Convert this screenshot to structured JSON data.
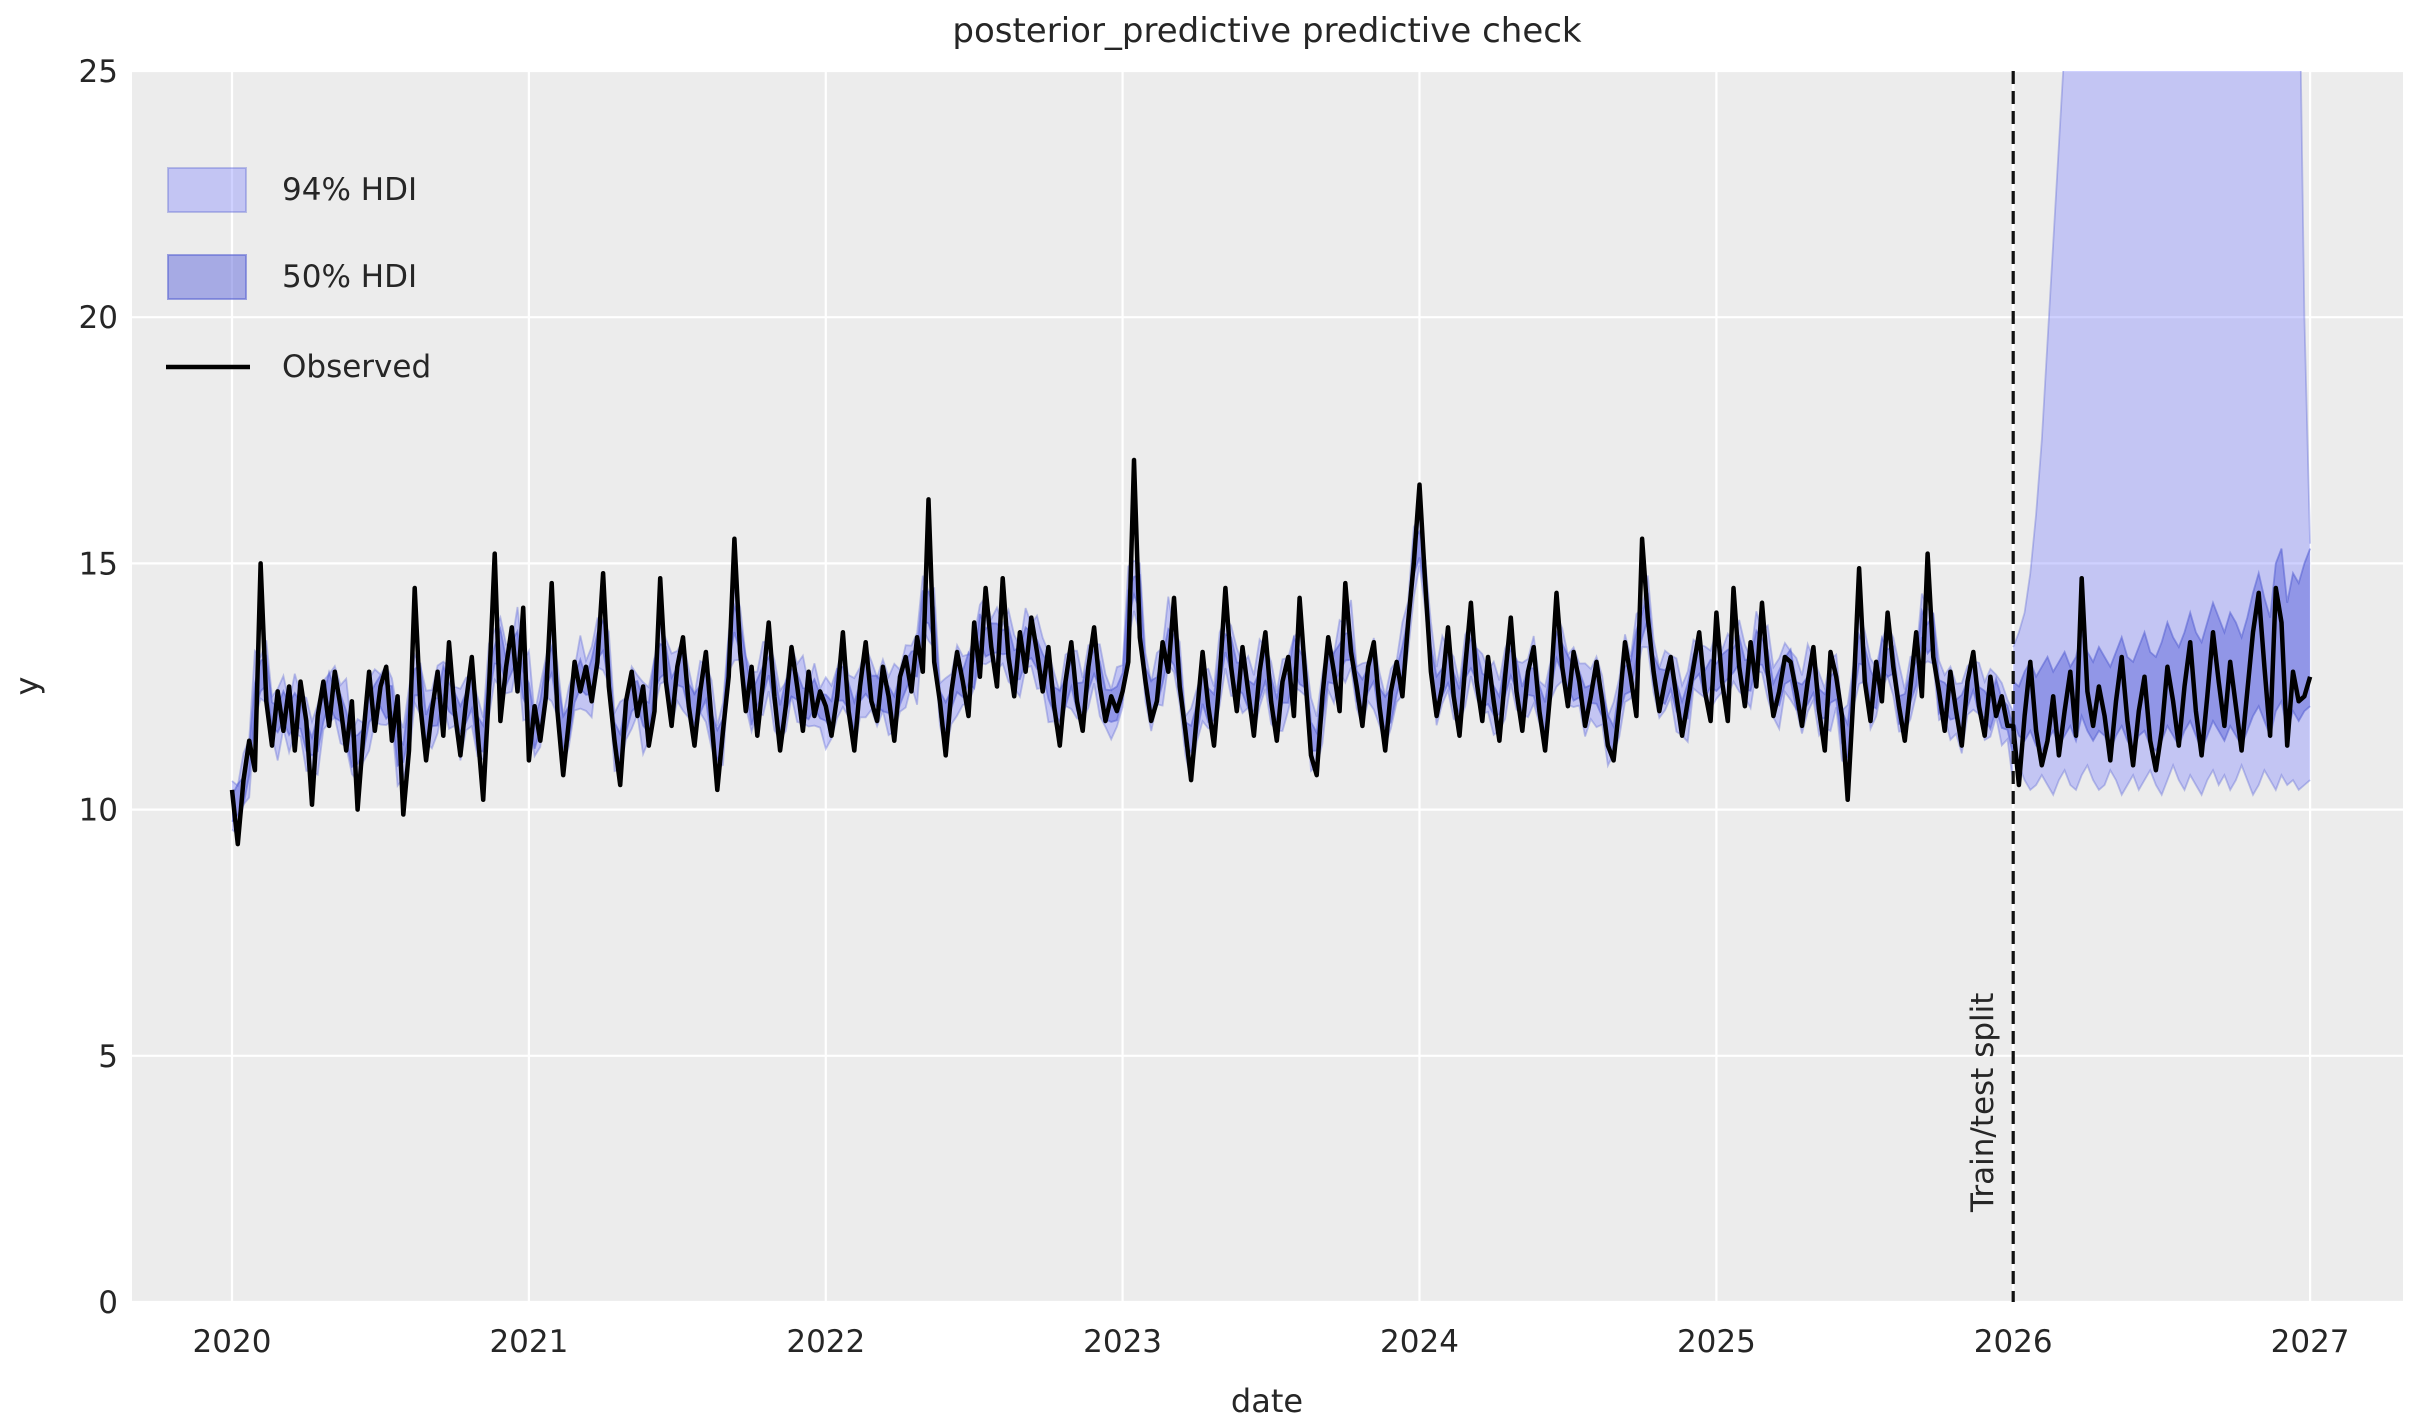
{
  "colors": {
    "figure_bg": "#ffffff",
    "axes_bg": "#ececec",
    "grid": "#ffffff",
    "observed": "#000000",
    "hdi94_fill": "rgba(123,128,255,0.36)",
    "hdi50_fill": "rgba(95,104,220,0.50)",
    "band_edge94": "rgba(86,96,210,0.35)",
    "band_edge50": "rgba(86,96,210,0.55)",
    "split_line": "#111111",
    "text": "#262626"
  },
  "chart_data": {
    "type": "line",
    "title": "posterior_predictive predictive check",
    "xlabel": "date",
    "ylabel": "y",
    "xlim": [
      2019.663,
      2027.313
    ],
    "ylim": [
      0,
      25
    ],
    "x_ticks": [
      2020,
      2021,
      2022,
      2023,
      2024,
      2025,
      2026,
      2027
    ],
    "y_ticks": [
      0,
      5,
      10,
      15,
      20,
      25
    ],
    "grid": true,
    "legend": [
      {
        "label": "94% HDI",
        "type": "patch",
        "role": "hdi94"
      },
      {
        "label": "50% HDI",
        "type": "patch",
        "role": "hdi50"
      },
      {
        "label": "Observed",
        "type": "line",
        "role": "observed"
      }
    ],
    "split": {
      "x": 2026.0,
      "label": "Train/test split"
    },
    "series": {
      "x_start": 2020.0,
      "x_step_years": 0.019230769,
      "observed": [
        10.4,
        9.3,
        10.6,
        11.4,
        10.8,
        15.0,
        12.2,
        11.3,
        12.4,
        11.6,
        12.5,
        11.2,
        12.6,
        11.8,
        10.1,
        11.9,
        12.6,
        11.7,
        12.8,
        12.1,
        11.2,
        12.2,
        10.0,
        11.5,
        12.8,
        11.6,
        12.5,
        12.9,
        11.4,
        12.3,
        9.9,
        11.2,
        14.5,
        12.1,
        11.0,
        12.0,
        12.8,
        11.5,
        13.4,
        12.0,
        11.1,
        12.2,
        13.1,
        11.6,
        10.2,
        12.4,
        15.2,
        11.8,
        12.9,
        13.7,
        12.4,
        14.1,
        11.0,
        12.1,
        11.4,
        12.3,
        14.6,
        12.0,
        10.7,
        11.8,
        13.0,
        12.4,
        12.9,
        12.2,
        13.0,
        14.8,
        12.5,
        11.4,
        10.5,
        12.2,
        12.8,
        11.9,
        12.5,
        11.3,
        12.0,
        14.7,
        12.6,
        11.7,
        12.9,
        13.5,
        12.1,
        11.3,
        12.4,
        13.2,
        11.8,
        10.4,
        11.6,
        12.7,
        15.5,
        13.2,
        12.0,
        12.9,
        11.5,
        12.6,
        13.8,
        12.3,
        11.2,
        12.1,
        13.3,
        12.5,
        11.6,
        12.8,
        11.9,
        12.4,
        12.1,
        11.5,
        12.3,
        13.6,
        12.0,
        11.2,
        12.5,
        13.4,
        12.2,
        11.8,
        12.9,
        12.3,
        11.4,
        12.7,
        13.1,
        12.4,
        13.5,
        12.8,
        16.3,
        13.0,
        12.2,
        11.1,
        12.4,
        13.2,
        12.6,
        11.9,
        13.8,
        12.7,
        14.5,
        13.3,
        12.5,
        14.7,
        13.1,
        12.3,
        13.6,
        12.8,
        13.9,
        13.2,
        12.4,
        13.3,
        12.1,
        11.3,
        12.6,
        13.4,
        12.2,
        11.6,
        12.9,
        13.7,
        12.5,
        11.8,
        12.3,
        12.0,
        12.4,
        13.0,
        17.1,
        13.5,
        12.6,
        11.8,
        12.2,
        13.4,
        12.8,
        14.3,
        12.5,
        11.6,
        10.6,
        11.9,
        13.2,
        12.1,
        11.3,
        12.7,
        14.5,
        12.9,
        12.0,
        13.3,
        12.4,
        11.5,
        12.8,
        13.6,
        12.2,
        11.4,
        12.6,
        13.1,
        11.9,
        14.3,
        12.7,
        11.1,
        10.7,
        12.3,
        13.5,
        12.8,
        12.0,
        14.6,
        13.2,
        12.5,
        11.7,
        12.9,
        13.4,
        12.1,
        11.2,
        12.4,
        13.0,
        12.3,
        13.8,
        15.0,
        16.6,
        14.6,
        12.8,
        11.9,
        12.5,
        13.7,
        12.3,
        11.5,
        12.9,
        14.2,
        12.6,
        11.8,
        13.1,
        12.2,
        11.4,
        12.7,
        13.9,
        12.4,
        11.6,
        12.8,
        13.3,
        12.0,
        11.2,
        12.5,
        14.4,
        12.9,
        12.1,
        13.2,
        12.6,
        11.7,
        12.3,
        13.0,
        12.2,
        11.3,
        11.0,
        12.1,
        13.4,
        12.7,
        11.9,
        15.5,
        13.9,
        12.8,
        12.0,
        12.6,
        13.1,
        12.3,
        11.5,
        12.2,
        12.9,
        13.6,
        12.4,
        11.8,
        14.0,
        12.6,
        11.8,
        14.5,
        12.9,
        12.1,
        13.4,
        12.5,
        14.2,
        12.8,
        11.9,
        12.4,
        13.1,
        13.0,
        12.4,
        11.7,
        12.6,
        13.3,
        12.0,
        11.2,
        13.2,
        12.7,
        11.9,
        10.2,
        12.3,
        14.9,
        12.6,
        11.8,
        13.0,
        12.2,
        14.0,
        12.9,
        12.1,
        11.4,
        12.5,
        13.6,
        12.3,
        15.2,
        13.1,
        12.4,
        11.6,
        12.8,
        12.0,
        11.3,
        12.6,
        13.2,
        12.1,
        11.5,
        12.7,
        11.9,
        12.3,
        11.7,
        11.7,
        10.5,
        11.9,
        13.0,
        11.6,
        10.9,
        11.4,
        12.3,
        11.1,
        12.0,
        12.8,
        11.5,
        14.7,
        12.4,
        11.7,
        12.5,
        11.9,
        11.0,
        12.2,
        13.1,
        11.8,
        10.9,
        12.0,
        12.7,
        11.4,
        10.8,
        11.6,
        12.9,
        12.2,
        11.3,
        12.5,
        13.4,
        12.0,
        11.1,
        12.3,
        13.6,
        12.6,
        11.7,
        13.0,
        12.1,
        11.2,
        12.4,
        13.6,
        14.4,
        12.9,
        11.5,
        14.5,
        13.8,
        11.3,
        12.8,
        12.2,
        12.3,
        12.7
      ],
      "train": {
        "end_index": 312,
        "smooth_window": 3,
        "hdi94_halfwidth": 0.55,
        "hdi50_halfwidth": 0.28,
        "halfwidth_jitter": [
          1.0,
          0.7,
          1.3,
          0.9,
          1.5,
          0.8,
          1.1,
          0.6,
          1.25,
          1.0,
          0.75,
          1.2,
          0.85,
          1.4,
          0.95,
          1.1
        ]
      },
      "test": {
        "start_index": 312,
        "hdi94_upper": [
          13.3,
          13.6,
          14.0,
          14.8,
          16.0,
          17.5,
          19.5,
          21.5,
          23.5,
          25.5,
          27.5,
          29.5,
          31.0,
          32.0,
          32.0,
          32.0,
          32.0,
          32.0,
          32.0,
          32.0,
          32.0,
          32.0,
          32.0,
          32.0,
          32.0,
          32.0,
          32.0,
          32.0,
          32.0,
          32.0,
          32.0,
          32.0,
          32.0,
          32.0,
          32.0,
          32.0,
          32.0,
          32.0,
          32.0,
          32.0,
          32.0,
          32.0,
          32.0,
          32.0,
          32.0,
          32.0,
          32.0,
          32.0,
          32.0,
          32.0,
          28.0,
          20.0,
          15.4
        ],
        "hdi94_lower": [
          11.3,
          10.9,
          10.6,
          10.4,
          10.5,
          10.7,
          10.5,
          10.3,
          10.6,
          10.8,
          10.5,
          10.4,
          10.7,
          10.9,
          10.6,
          10.4,
          10.5,
          10.8,
          10.6,
          10.3,
          10.5,
          10.7,
          10.4,
          10.6,
          10.8,
          10.5,
          10.3,
          10.6,
          10.9,
          10.6,
          10.4,
          10.7,
          10.5,
          10.3,
          10.6,
          10.8,
          10.5,
          10.7,
          10.4,
          10.6,
          10.9,
          10.6,
          10.3,
          10.5,
          10.8,
          10.6,
          10.4,
          10.7,
          10.5,
          10.6,
          10.4,
          10.5,
          10.6
        ],
        "hdi50_upper": [
          12.6,
          12.5,
          12.8,
          13.0,
          12.7,
          12.9,
          13.1,
          12.8,
          13.0,
          13.2,
          12.9,
          13.1,
          13.6,
          13.2,
          13.0,
          13.3,
          13.1,
          12.9,
          13.2,
          13.5,
          13.1,
          13.0,
          13.3,
          13.6,
          13.2,
          13.1,
          13.4,
          13.8,
          13.5,
          13.3,
          13.6,
          14.0,
          13.6,
          13.4,
          13.8,
          14.2,
          13.9,
          13.6,
          14.0,
          13.8,
          13.5,
          13.9,
          14.4,
          14.8,
          14.3,
          13.9,
          15.0,
          15.3,
          14.2,
          14.8,
          14.6,
          15.0,
          15.3
        ],
        "hdi50_lower": [
          11.8,
          11.5,
          11.4,
          11.6,
          11.3,
          11.2,
          11.4,
          11.6,
          11.3,
          11.5,
          11.7,
          11.4,
          11.9,
          11.6,
          11.4,
          11.6,
          11.5,
          11.2,
          11.5,
          11.7,
          11.4,
          11.2,
          11.5,
          11.6,
          11.3,
          11.2,
          11.4,
          11.7,
          11.5,
          11.3,
          11.6,
          11.8,
          11.5,
          11.2,
          11.5,
          11.8,
          11.6,
          11.4,
          11.7,
          11.5,
          11.3,
          11.6,
          11.9,
          12.1,
          11.8,
          11.5,
          12.0,
          12.2,
          11.6,
          12.0,
          11.8,
          12.0,
          12.1
        ]
      }
    }
  }
}
